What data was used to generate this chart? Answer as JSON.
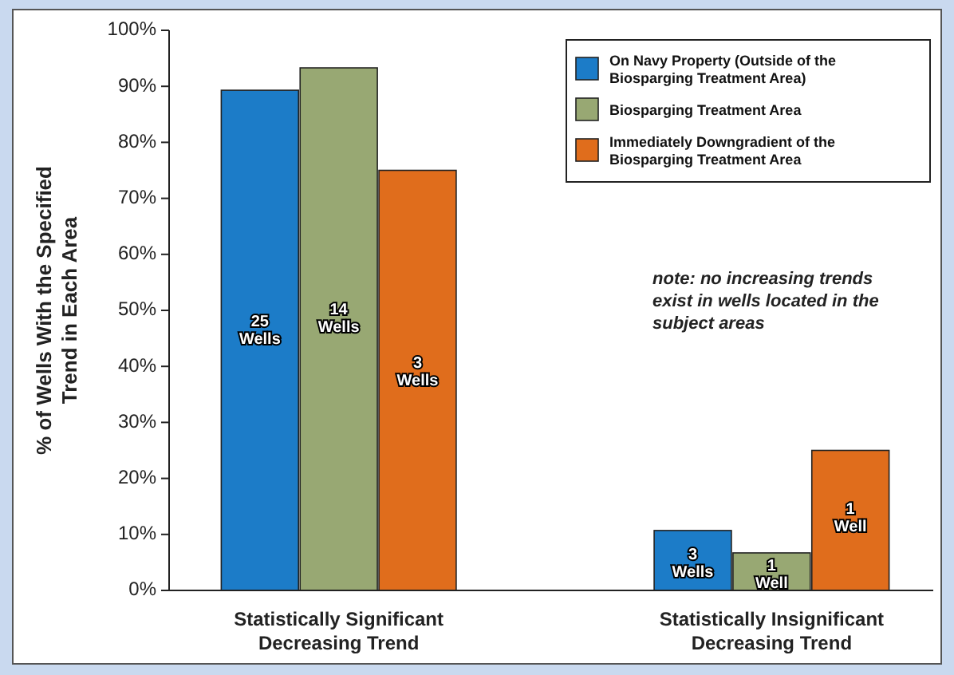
{
  "chart_data": {
    "type": "bar",
    "ylabel": "% of Wells With the Specified Trend in Each Area",
    "categories": [
      "Statistically Significant Decreasing Trend",
      "Statistically Insignificant Decreasing Trend"
    ],
    "series": [
      {
        "name": "On Navy Property (Outside of the Biosparging Treatment Area)",
        "color": "#1c7cc8",
        "values": [
          89.3,
          10.7
        ]
      },
      {
        "name": "Biosparging Treatment Area",
        "color": "#98a873",
        "values": [
          93.3,
          6.7
        ]
      },
      {
        "name": "Immediately Downgradient of the Biosparging Treatment Area",
        "color": "#e06d1c",
        "values": [
          75,
          25
        ]
      }
    ],
    "ylim": [
      0,
      100
    ],
    "yticks": [
      {
        "value": 0,
        "label": "0%"
      },
      {
        "value": 10,
        "label": "10%"
      },
      {
        "value": 20,
        "label": "20%"
      },
      {
        "value": 30,
        "label": "30%"
      },
      {
        "value": 40,
        "label": "40%"
      },
      {
        "value": 50,
        "label": "50%"
      },
      {
        "value": 60,
        "label": "60%"
      },
      {
        "value": 70,
        "label": "70%"
      },
      {
        "value": 80,
        "label": "80%"
      },
      {
        "value": 90,
        "label": "90%"
      },
      {
        "value": 100,
        "label": "100%"
      }
    ],
    "legend": "top right",
    "annotations": [
      "note: no increasing trends exist in wells located in the subject areas",
      "25 Wells",
      "14 Wells",
      "3 Wells",
      "3 Wells",
      "1 Well",
      "1 Well"
    ]
  }
}
